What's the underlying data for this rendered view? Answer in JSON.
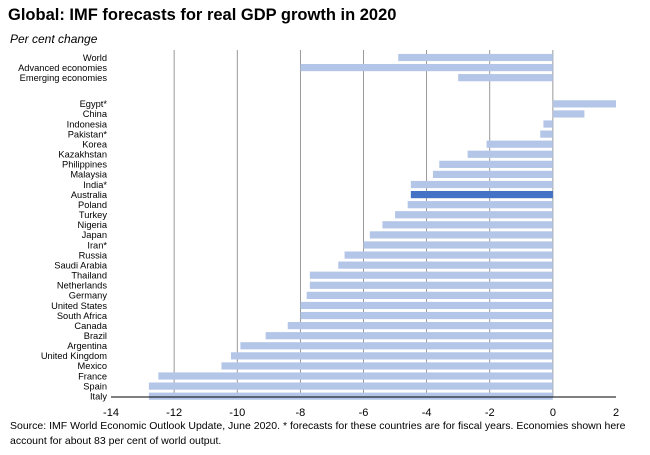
{
  "chart_data": {
    "type": "bar",
    "orientation": "horizontal",
    "title": "Global: IMF forecasts for real GDP growth in 2020",
    "subtitle": "Per cent change",
    "xlabel": "",
    "ylabel": "",
    "xlim": [
      -14,
      2
    ],
    "xticks": [
      "-14",
      "-12",
      "-10",
      "-8",
      "-6",
      "-4",
      "-2",
      "0",
      "2"
    ],
    "grid": true,
    "legend": "none",
    "source": "Source: IMF World Economic Outlook Update, June 2020. * forecasts for these countries are for fiscal years.  Economies shown here account for about 83 per cent of world output.",
    "groups": [
      {
        "name": "aggregates",
        "bars": [
          {
            "label": "World",
            "value": -4.9
          },
          {
            "label": "Advanced economies",
            "value": -8.0
          },
          {
            "label": "Emerging economies",
            "value": -3.0
          }
        ]
      },
      {
        "name": "countries",
        "bars": [
          {
            "label": "Egypt*",
            "value": 2.0
          },
          {
            "label": "China",
            "value": 1.0
          },
          {
            "label": "Indonesia",
            "value": -0.3
          },
          {
            "label": "Pakistan*",
            "value": -0.4
          },
          {
            "label": "Korea",
            "value": -2.1
          },
          {
            "label": "Kazakhstan",
            "value": -2.7
          },
          {
            "label": "Philippines",
            "value": -3.6
          },
          {
            "label": "Malaysia",
            "value": -3.8
          },
          {
            "label": "India*",
            "value": -4.5
          },
          {
            "label": "Australia",
            "value": -4.5,
            "highlight": true
          },
          {
            "label": "Poland",
            "value": -4.6
          },
          {
            "label": "Turkey",
            "value": -5.0
          },
          {
            "label": "Nigeria",
            "value": -5.4
          },
          {
            "label": "Japan",
            "value": -5.8
          },
          {
            "label": "Iran*",
            "value": -6.0
          },
          {
            "label": "Russia",
            "value": -6.6
          },
          {
            "label": "Saudi Arabia",
            "value": -6.8
          },
          {
            "label": "Thailand",
            "value": -7.7
          },
          {
            "label": "Netherlands",
            "value": -7.7
          },
          {
            "label": "Germany",
            "value": -7.8
          },
          {
            "label": "United States",
            "value": -8.0
          },
          {
            "label": "South Africa",
            "value": -8.0
          },
          {
            "label": "Canada",
            "value": -8.4
          },
          {
            "label": "Brazil",
            "value": -9.1
          },
          {
            "label": "Argentina",
            "value": -9.9
          },
          {
            "label": "United Kingdom",
            "value": -10.2
          },
          {
            "label": "Mexico",
            "value": -10.5
          },
          {
            "label": "France",
            "value": -12.5
          },
          {
            "label": "Spain",
            "value": -12.8
          },
          {
            "label": "Italy",
            "value": -12.8
          }
        ]
      }
    ],
    "colors": {
      "bar": "#b3c6e7",
      "highlight": "#4472c4",
      "grid": "#808080"
    }
  }
}
